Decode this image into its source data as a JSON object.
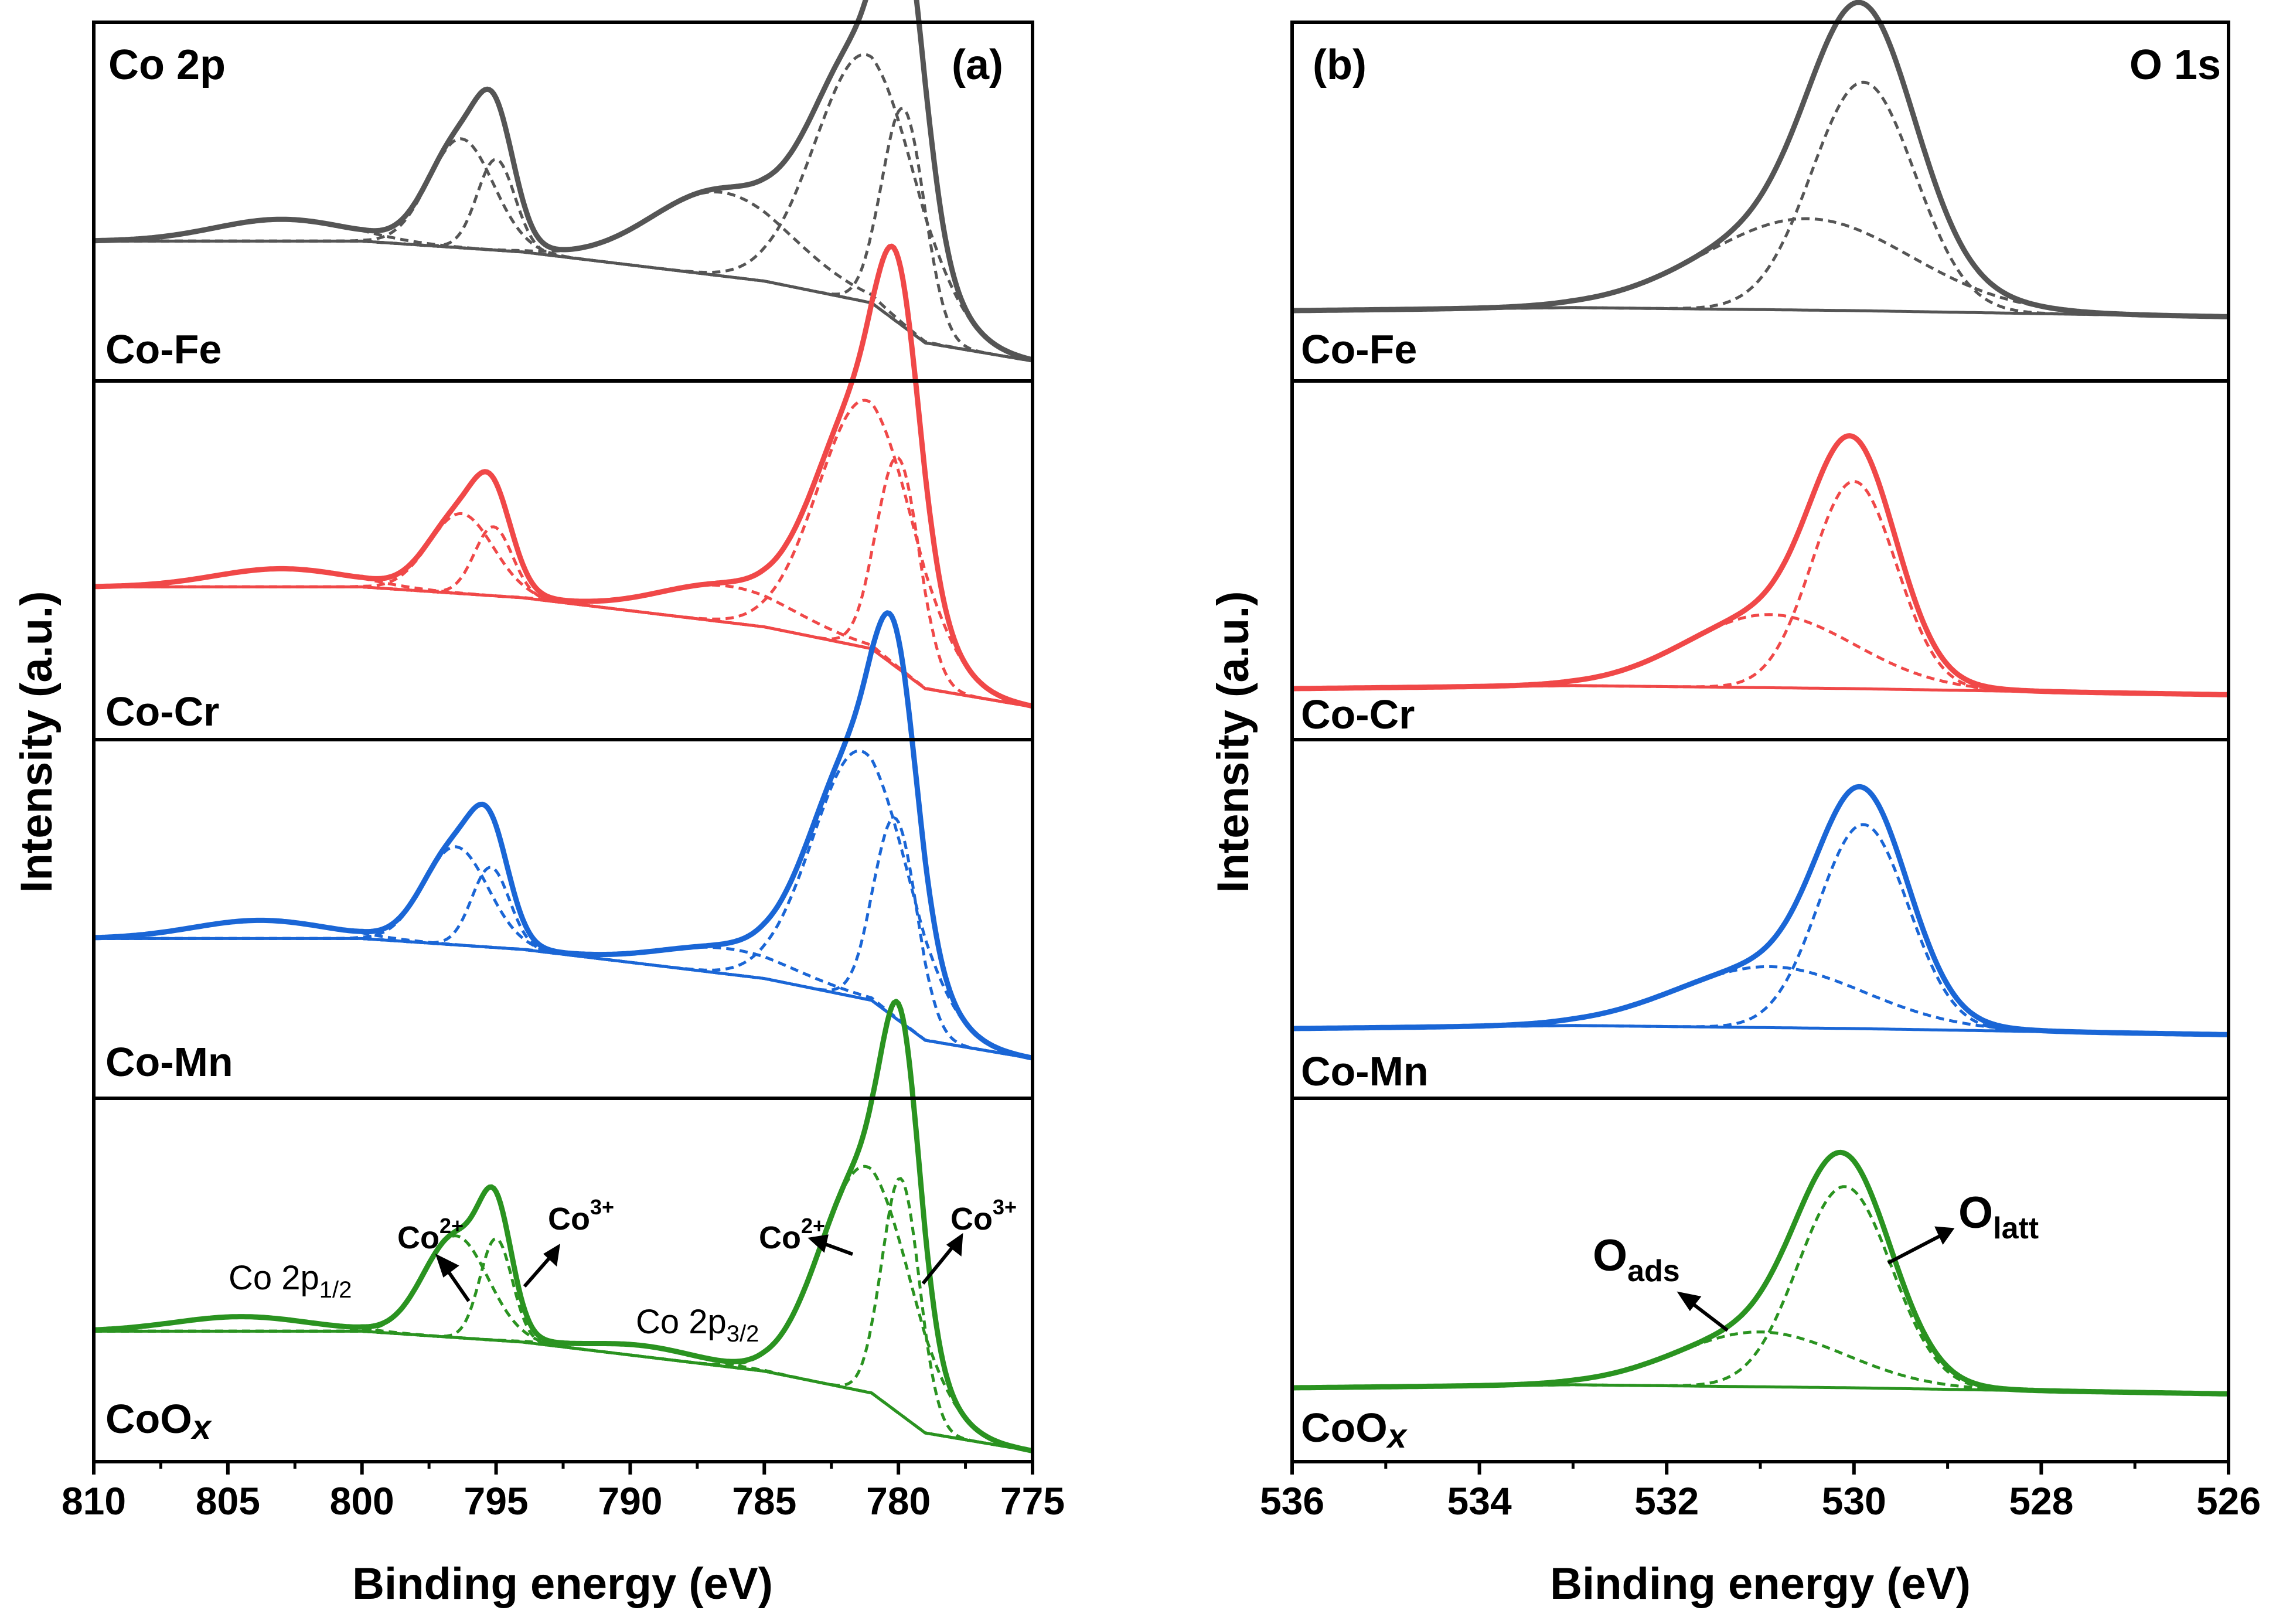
{
  "chart_data": [
    {
      "type": "line",
      "panel_label": "(a)",
      "region_label": "Co 2p",
      "xlabel": "Binding energy (eV)",
      "ylabel": "Intensity (a.u.)",
      "xlim": [
        810,
        775
      ],
      "xticks": [
        810,
        805,
        800,
        795,
        790,
        785,
        780,
        775
      ],
      "x_reversed": true,
      "y_units": "arbitrary",
      "subplots": [
        {
          "sample": "Co-Fe",
          "sample_main": "Co-Fe",
          "sample_sub": "",
          "color": "#555555",
          "baseline": [
            [
              810,
              0.03
            ],
            [
              800,
              0.03
            ],
            [
              794,
              0.0
            ],
            [
              785,
              -0.08
            ],
            [
              781,
              -0.14
            ],
            [
              779,
              -0.25
            ],
            [
              775,
              -0.3
            ]
          ],
          "components": [
            {
              "center": 781.2,
              "height": 0.68,
              "width": 1.9,
              "oxidation": "Co2+"
            },
            {
              "center": 779.8,
              "height": 0.6,
              "width": 0.8,
              "oxidation": "Co3+"
            },
            {
              "center": 786.6,
              "height": 0.23,
              "width": 2.6,
              "oxidation": "satellite"
            },
            {
              "center": 796.3,
              "height": 0.3,
              "width": 1.2,
              "oxidation": "Co2+"
            },
            {
              "center": 795.0,
              "height": 0.25,
              "width": 0.7,
              "oxidation": "Co3+"
            },
            {
              "center": 803.0,
              "height": 0.06,
              "width": 2.5,
              "oxidation": "satellite"
            }
          ]
        },
        {
          "sample": "Co-Cr",
          "sample_main": "Co-Cr",
          "sample_sub": "",
          "color": "#f04848",
          "baseline": [
            [
              810,
              0.03
            ],
            [
              800,
              0.03
            ],
            [
              794,
              0.0
            ],
            [
              785,
              -0.08
            ],
            [
              781,
              -0.14
            ],
            [
              779,
              -0.25
            ],
            [
              775,
              -0.3
            ]
          ],
          "components": [
            {
              "center": 781.2,
              "height": 0.68,
              "width": 1.8,
              "oxidation": "Co2+"
            },
            {
              "center": 780.0,
              "height": 0.58,
              "width": 0.8,
              "oxidation": "Co3+"
            },
            {
              "center": 786.4,
              "height": 0.1,
              "width": 2.5,
              "oxidation": "satellite"
            },
            {
              "center": 796.3,
              "height": 0.22,
              "width": 1.2,
              "oxidation": "Co2+"
            },
            {
              "center": 795.1,
              "height": 0.19,
              "width": 0.7,
              "oxidation": "Co3+"
            },
            {
              "center": 803.0,
              "height": 0.05,
              "width": 2.5,
              "oxidation": "satellite"
            }
          ]
        },
        {
          "sample": "Co-Mn",
          "sample_main": "Co-Mn",
          "sample_sub": "",
          "color": "#1a66d6",
          "baseline": [
            [
              810,
              0.03
            ],
            [
              800,
              0.03
            ],
            [
              794,
              0.0
            ],
            [
              785,
              -0.08
            ],
            [
              781,
              -0.14
            ],
            [
              779,
              -0.25
            ],
            [
              775,
              -0.3
            ]
          ],
          "components": [
            {
              "center": 781.4,
              "height": 0.68,
              "width": 1.8,
              "oxidation": "Co2+"
            },
            {
              "center": 780.1,
              "height": 0.55,
              "width": 0.8,
              "oxidation": "Co3+"
            },
            {
              "center": 786.4,
              "height": 0.07,
              "width": 2.5,
              "oxidation": "satellite"
            },
            {
              "center": 796.5,
              "height": 0.27,
              "width": 1.2,
              "oxidation": "Co2+"
            },
            {
              "center": 795.2,
              "height": 0.22,
              "width": 0.7,
              "oxidation": "Co3+"
            },
            {
              "center": 803.8,
              "height": 0.05,
              "width": 2.5,
              "oxidation": "satellite"
            }
          ]
        },
        {
          "sample": "CoOx",
          "sample_main": "CoO",
          "sample_sub": "x",
          "color": "#2a9320",
          "baseline": [
            [
              810,
              0.03
            ],
            [
              800,
              0.03
            ],
            [
              794,
              0.0
            ],
            [
              785,
              -0.08
            ],
            [
              781,
              -0.14
            ],
            [
              779,
              -0.25
            ],
            [
              775,
              -0.3
            ]
          ],
          "components": [
            {
              "center": 781.2,
              "height": 0.62,
              "width": 1.7,
              "oxidation": "Co2+"
            },
            {
              "center": 779.9,
              "height": 0.65,
              "width": 0.7,
              "oxidation": "Co3+"
            },
            {
              "center": 789.5,
              "height": 0.03,
              "width": 2.0,
              "oxidation": "satellite"
            },
            {
              "center": 796.5,
              "height": 0.28,
              "width": 1.2,
              "oxidation": "Co2+"
            },
            {
              "center": 795.0,
              "height": 0.28,
              "width": 0.6,
              "oxidation": "Co3+"
            },
            {
              "center": 804.5,
              "height": 0.04,
              "width": 2.5,
              "oxidation": "satellite"
            }
          ]
        }
      ],
      "annotations": {
        "co2p12": {
          "main": "Co 2p",
          "sub": "1/2"
        },
        "co2p32": {
          "main": "Co 2p",
          "sub": "3/2"
        },
        "co2_a": {
          "main": "Co",
          "sup": "2+"
        },
        "co3_a": {
          "main": "Co",
          "sup": "3+"
        },
        "co2_b": {
          "main": "Co",
          "sup": "2+"
        },
        "co3_b": {
          "main": "Co",
          "sup": "3+"
        }
      }
    },
    {
      "type": "line",
      "panel_label": "(b)",
      "region_label": "O 1s",
      "xlabel": "Binding energy (eV)",
      "ylabel": "Intensity (a.u.)",
      "xlim": [
        536,
        526
      ],
      "xticks": [
        536,
        534,
        532,
        530,
        528,
        526
      ],
      "x_reversed": true,
      "y_units": "arbitrary",
      "subplots": [
        {
          "sample": "Co-Fe",
          "sample_main": "Co-Fe",
          "sample_sub": "",
          "color": "#555555",
          "baseline": [
            [
              536,
              0.0
            ],
            [
              533,
              0.01
            ],
            [
              530,
              0.0
            ],
            [
              526,
              -0.02
            ]
          ],
          "components": [
            {
              "center": 529.9,
              "height": 0.75,
              "width": 0.55,
              "oxidation": "O_latt"
            },
            {
              "center": 530.5,
              "height": 0.3,
              "width": 1.1,
              "oxidation": "O_ads"
            }
          ]
        },
        {
          "sample": "Co-Cr",
          "sample_main": "Co-Cr",
          "sample_sub": "",
          "color": "#f04848",
          "baseline": [
            [
              536,
              0.0
            ],
            [
              533,
              0.01
            ],
            [
              530,
              0.0
            ],
            [
              526,
              -0.02
            ]
          ],
          "components": [
            {
              "center": 530.0,
              "height": 0.68,
              "width": 0.45,
              "oxidation": "O_latt"
            },
            {
              "center": 530.9,
              "height": 0.24,
              "width": 0.9,
              "oxidation": "O_ads"
            }
          ]
        },
        {
          "sample": "Co-Mn",
          "sample_main": "Co-Mn",
          "sample_sub": "",
          "color": "#1a66d6",
          "baseline": [
            [
              536,
              0.0
            ],
            [
              533,
              0.01
            ],
            [
              530,
              0.0
            ],
            [
              526,
              -0.02
            ]
          ],
          "components": [
            {
              "center": 529.9,
              "height": 0.67,
              "width": 0.48,
              "oxidation": "O_latt"
            },
            {
              "center": 530.9,
              "height": 0.2,
              "width": 1.0,
              "oxidation": "O_ads"
            }
          ]
        },
        {
          "sample": "CoOx",
          "sample_main": "CoO",
          "sample_sub": "x",
          "color": "#2a9320",
          "baseline": [
            [
              536,
              0.0
            ],
            [
              533,
              0.01
            ],
            [
              530,
              0.0
            ],
            [
              526,
              -0.02
            ]
          ],
          "components": [
            {
              "center": 530.1,
              "height": 0.66,
              "width": 0.5,
              "oxidation": "O_latt"
            },
            {
              "center": 531.0,
              "height": 0.18,
              "width": 0.9,
              "oxidation": "O_ads"
            }
          ]
        }
      ],
      "annotations": {
        "oads": {
          "main": "O",
          "sub": "ads"
        },
        "olatt": {
          "main": "O",
          "sub": "latt"
        }
      }
    }
  ]
}
